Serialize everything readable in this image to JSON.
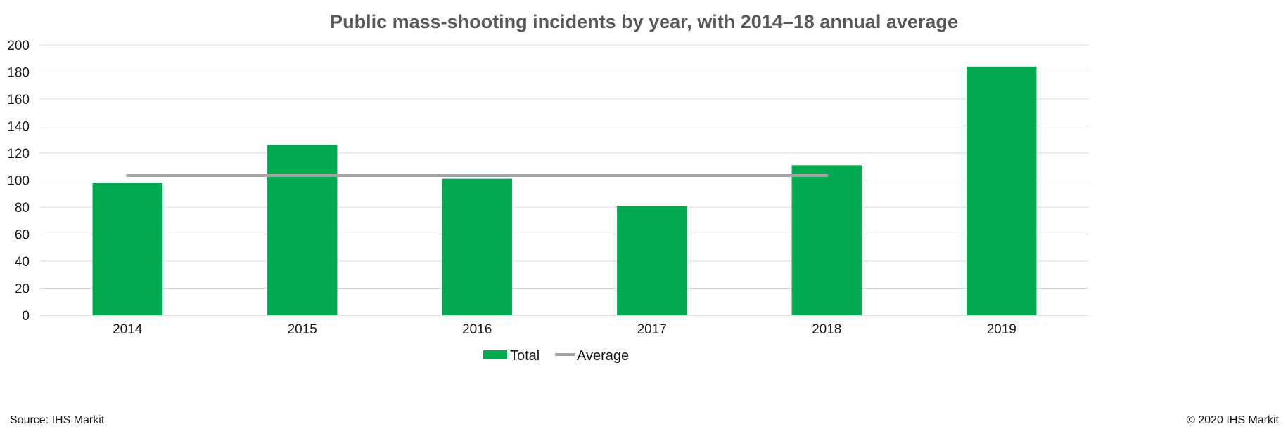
{
  "chart_data": {
    "type": "bar",
    "title": "Public mass-shooting incidents by year, with 2014–18 annual average",
    "categories": [
      "2014",
      "2015",
      "2016",
      "2017",
      "2018",
      "2019"
    ],
    "series": [
      {
        "name": "Total",
        "type": "bar",
        "color": "#00a94f",
        "values": [
          98,
          126,
          101,
          81,
          111,
          184
        ]
      },
      {
        "name": "Average",
        "type": "line",
        "color": "#a6a6a6",
        "range": [
          "2014",
          "2018"
        ],
        "value": 103.4
      }
    ],
    "ylim": [
      0,
      200
    ],
    "yticks": [
      0,
      20,
      40,
      60,
      80,
      100,
      120,
      140,
      160,
      180,
      200
    ],
    "xlabel": "",
    "ylabel": "",
    "grid": true,
    "legend_position": "bottom"
  },
  "footer": {
    "source": "Source: IHS Markit",
    "copyright": "© 2020 IHS Markit"
  }
}
